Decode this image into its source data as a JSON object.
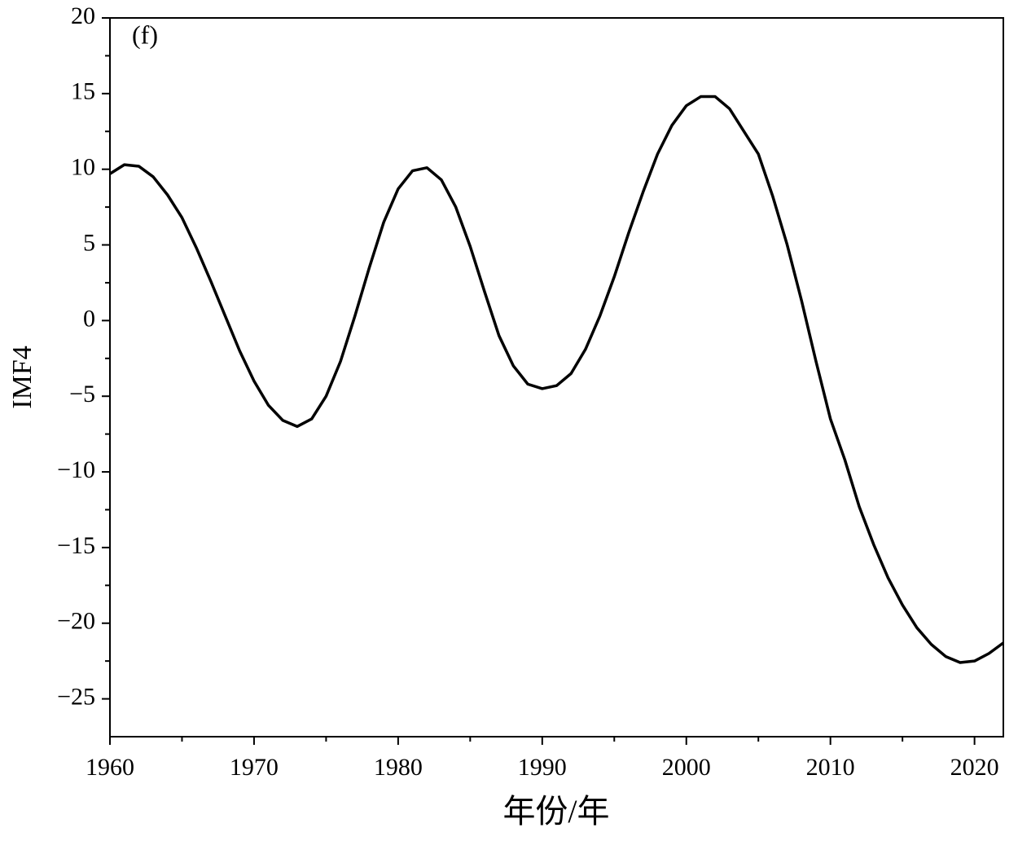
{
  "chart_data": {
    "type": "line",
    "title": "(f)",
    "xlabel": "年份/年",
    "ylabel": "IMF4",
    "x": [
      1960,
      1961,
      1962,
      1963,
      1964,
      1965,
      1966,
      1967,
      1968,
      1969,
      1970,
      1971,
      1972,
      1973,
      1974,
      1975,
      1976,
      1977,
      1978,
      1979,
      1980,
      1981,
      1982,
      1983,
      1984,
      1985,
      1986,
      1987,
      1988,
      1989,
      1990,
      1991,
      1992,
      1993,
      1994,
      1995,
      1996,
      1997,
      1998,
      1999,
      2000,
      2001,
      2002,
      2003,
      2004,
      2005,
      2006,
      2007,
      2008,
      2009,
      2010,
      2011,
      2012,
      2013,
      2014,
      2015,
      2016,
      2017,
      2018,
      2019,
      2020,
      2021,
      2022
    ],
    "series": [
      {
        "name": "IMF4",
        "color": "#000000",
        "values": [
          9.7,
          10.3,
          10.2,
          9.5,
          8.3,
          6.8,
          4.8,
          2.6,
          0.3,
          -2.0,
          -4.0,
          -5.6,
          -6.6,
          -7.0,
          -6.5,
          -5.0,
          -2.7,
          0.3,
          3.5,
          6.5,
          8.7,
          9.9,
          10.1,
          9.3,
          7.5,
          4.9,
          1.9,
          -1.0,
          -3.0,
          -4.2,
          -4.5,
          -4.3,
          -3.5,
          -1.9,
          0.3,
          2.9,
          5.8,
          8.5,
          11.0,
          12.9,
          14.2,
          14.8,
          14.8,
          14.0,
          12.5,
          11.0,
          8.2,
          5.0,
          1.3,
          -2.7,
          -6.5,
          -9.2,
          -12.3,
          -14.8,
          -17.0,
          -18.8,
          -20.3,
          -21.4,
          -22.2,
          -22.6,
          -22.5,
          -22.0,
          -21.3
        ]
      }
    ],
    "xlim": [
      1960,
      2022
    ],
    "xticks": [
      1960,
      1970,
      1980,
      1990,
      2000,
      2010,
      2020
    ],
    "xminorticks": [
      1965,
      1975,
      1985,
      1995,
      2005,
      2015
    ],
    "ylim": [
      -27.5,
      20
    ],
    "yticks": [
      {
        "value": -25,
        "label": "−25"
      },
      {
        "value": -20,
        "label": "−20"
      },
      {
        "value": -15,
        "label": "−15"
      },
      {
        "value": -10,
        "label": "−10"
      },
      {
        "value": -5,
        "label": "−5"
      },
      0,
      5,
      10,
      15,
      20
    ],
    "yminorticks": [
      -22.5,
      -17.5,
      -12.5,
      -7.5,
      -2.5,
      2.5,
      7.5,
      12.5,
      17.5
    ],
    "grid": false
  }
}
